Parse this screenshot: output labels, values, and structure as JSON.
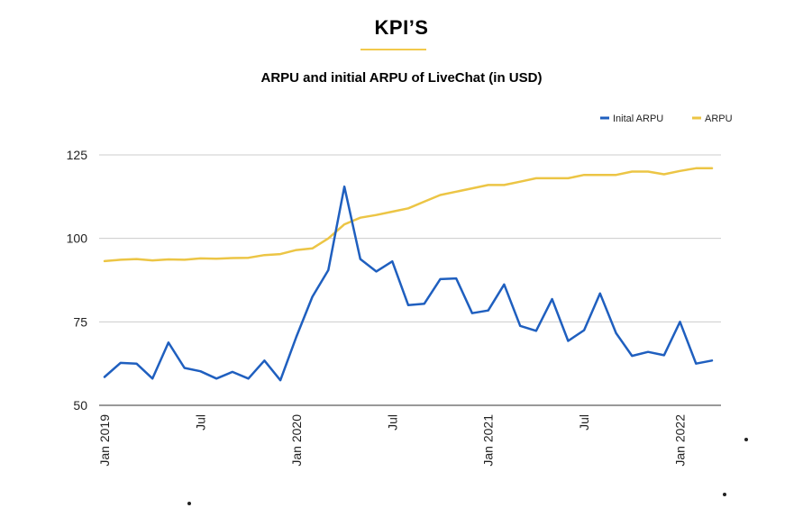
{
  "header": {
    "title": "KPI’S",
    "accent_color": "#f2c94c"
  },
  "chart_data": {
    "type": "line",
    "title": "ARPU and initial ARPU of LiveChat (in USD)",
    "xlabel": "",
    "ylabel": "",
    "ylim": [
      50,
      125
    ],
    "yticks": [
      50,
      75,
      100,
      125
    ],
    "x": [
      "2019-01",
      "2019-02",
      "2019-03",
      "2019-04",
      "2019-05",
      "2019-06",
      "2019-07",
      "2019-08",
      "2019-09",
      "2019-10",
      "2019-11",
      "2019-12",
      "2020-01",
      "2020-02",
      "2020-03",
      "2020-04",
      "2020-05",
      "2020-06",
      "2020-07",
      "2020-08",
      "2020-09",
      "2020-10",
      "2020-11",
      "2020-12",
      "2021-01",
      "2021-02",
      "2021-03",
      "2021-04",
      "2021-05",
      "2021-06",
      "2021-07",
      "2021-08",
      "2021-09",
      "2021-10",
      "2021-11",
      "2021-12",
      "2022-01",
      "2022-02",
      "2022-03"
    ],
    "xtick_labels": [
      {
        "index": 0,
        "label": "Jan 2019"
      },
      {
        "index": 6,
        "label": "Jul"
      },
      {
        "index": 12,
        "label": "Jan 2020"
      },
      {
        "index": 18,
        "label": "Jul"
      },
      {
        "index": 24,
        "label": "Jan 2021"
      },
      {
        "index": 30,
        "label": "Jul"
      },
      {
        "index": 36,
        "label": "Jan 2022"
      }
    ],
    "grid": true,
    "legend_position": "top-right",
    "series": [
      {
        "name": "Inital ARPU",
        "color": "#1f5fbf",
        "values": [
          58.5,
          62.7,
          62.5,
          58.0,
          68.8,
          61.2,
          60.2,
          58.0,
          60.0,
          58.0,
          63.4,
          57.5,
          70.5,
          82.5,
          90.5,
          115.5,
          93.8,
          90.1,
          93.1,
          80.0,
          80.4,
          87.8,
          88.0,
          77.6,
          78.4,
          86.2,
          73.8,
          72.3,
          81.8,
          69.3,
          72.5,
          83.5,
          71.6,
          64.8,
          66.0,
          65.0,
          75.0,
          62.5,
          63.4
        ]
      },
      {
        "name": "ARPU",
        "color": "#ecc545",
        "values": [
          93.2,
          93.6,
          93.8,
          93.4,
          93.7,
          93.6,
          94.0,
          93.9,
          94.1,
          94.2,
          95.0,
          95.3,
          96.5,
          97.0,
          100.0,
          104.2,
          106.2,
          107.0,
          108.0,
          109.0,
          111.0,
          113.0,
          114.0,
          115.0,
          116.0,
          116.0,
          117.0,
          118.0,
          118.0,
          118.0,
          119.0,
          119.0,
          119.0,
          120.0,
          120.0,
          119.2,
          120.2,
          121.0,
          121.0
        ]
      }
    ]
  }
}
